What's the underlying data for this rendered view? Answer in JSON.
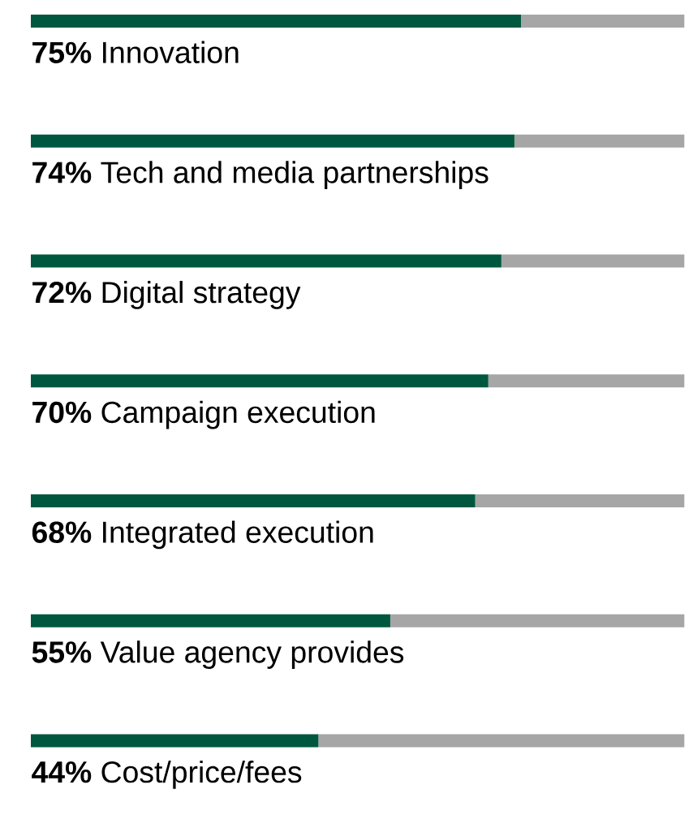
{
  "chart_data": {
    "type": "bar",
    "orientation": "horizontal",
    "stacked": true,
    "categories": [
      "Innovation",
      "Tech and media partnerships",
      "Digital strategy",
      "Campaign execution",
      "Integrated execution",
      "Value agency provides",
      "Cost/price/fees"
    ],
    "series": [
      {
        "color": "#00573f",
        "values": [
          75,
          74,
          72,
          70,
          68,
          55,
          44
        ],
        "value_labels": [
          "75%",
          "74%",
          "72%",
          "70%",
          "68%",
          "55%",
          "44%"
        ]
      },
      {
        "color": "#a6a6a6",
        "values": [
          25,
          26,
          28,
          30,
          32,
          45,
          56
        ]
      }
    ],
    "xlim": [
      0,
      100
    ]
  }
}
